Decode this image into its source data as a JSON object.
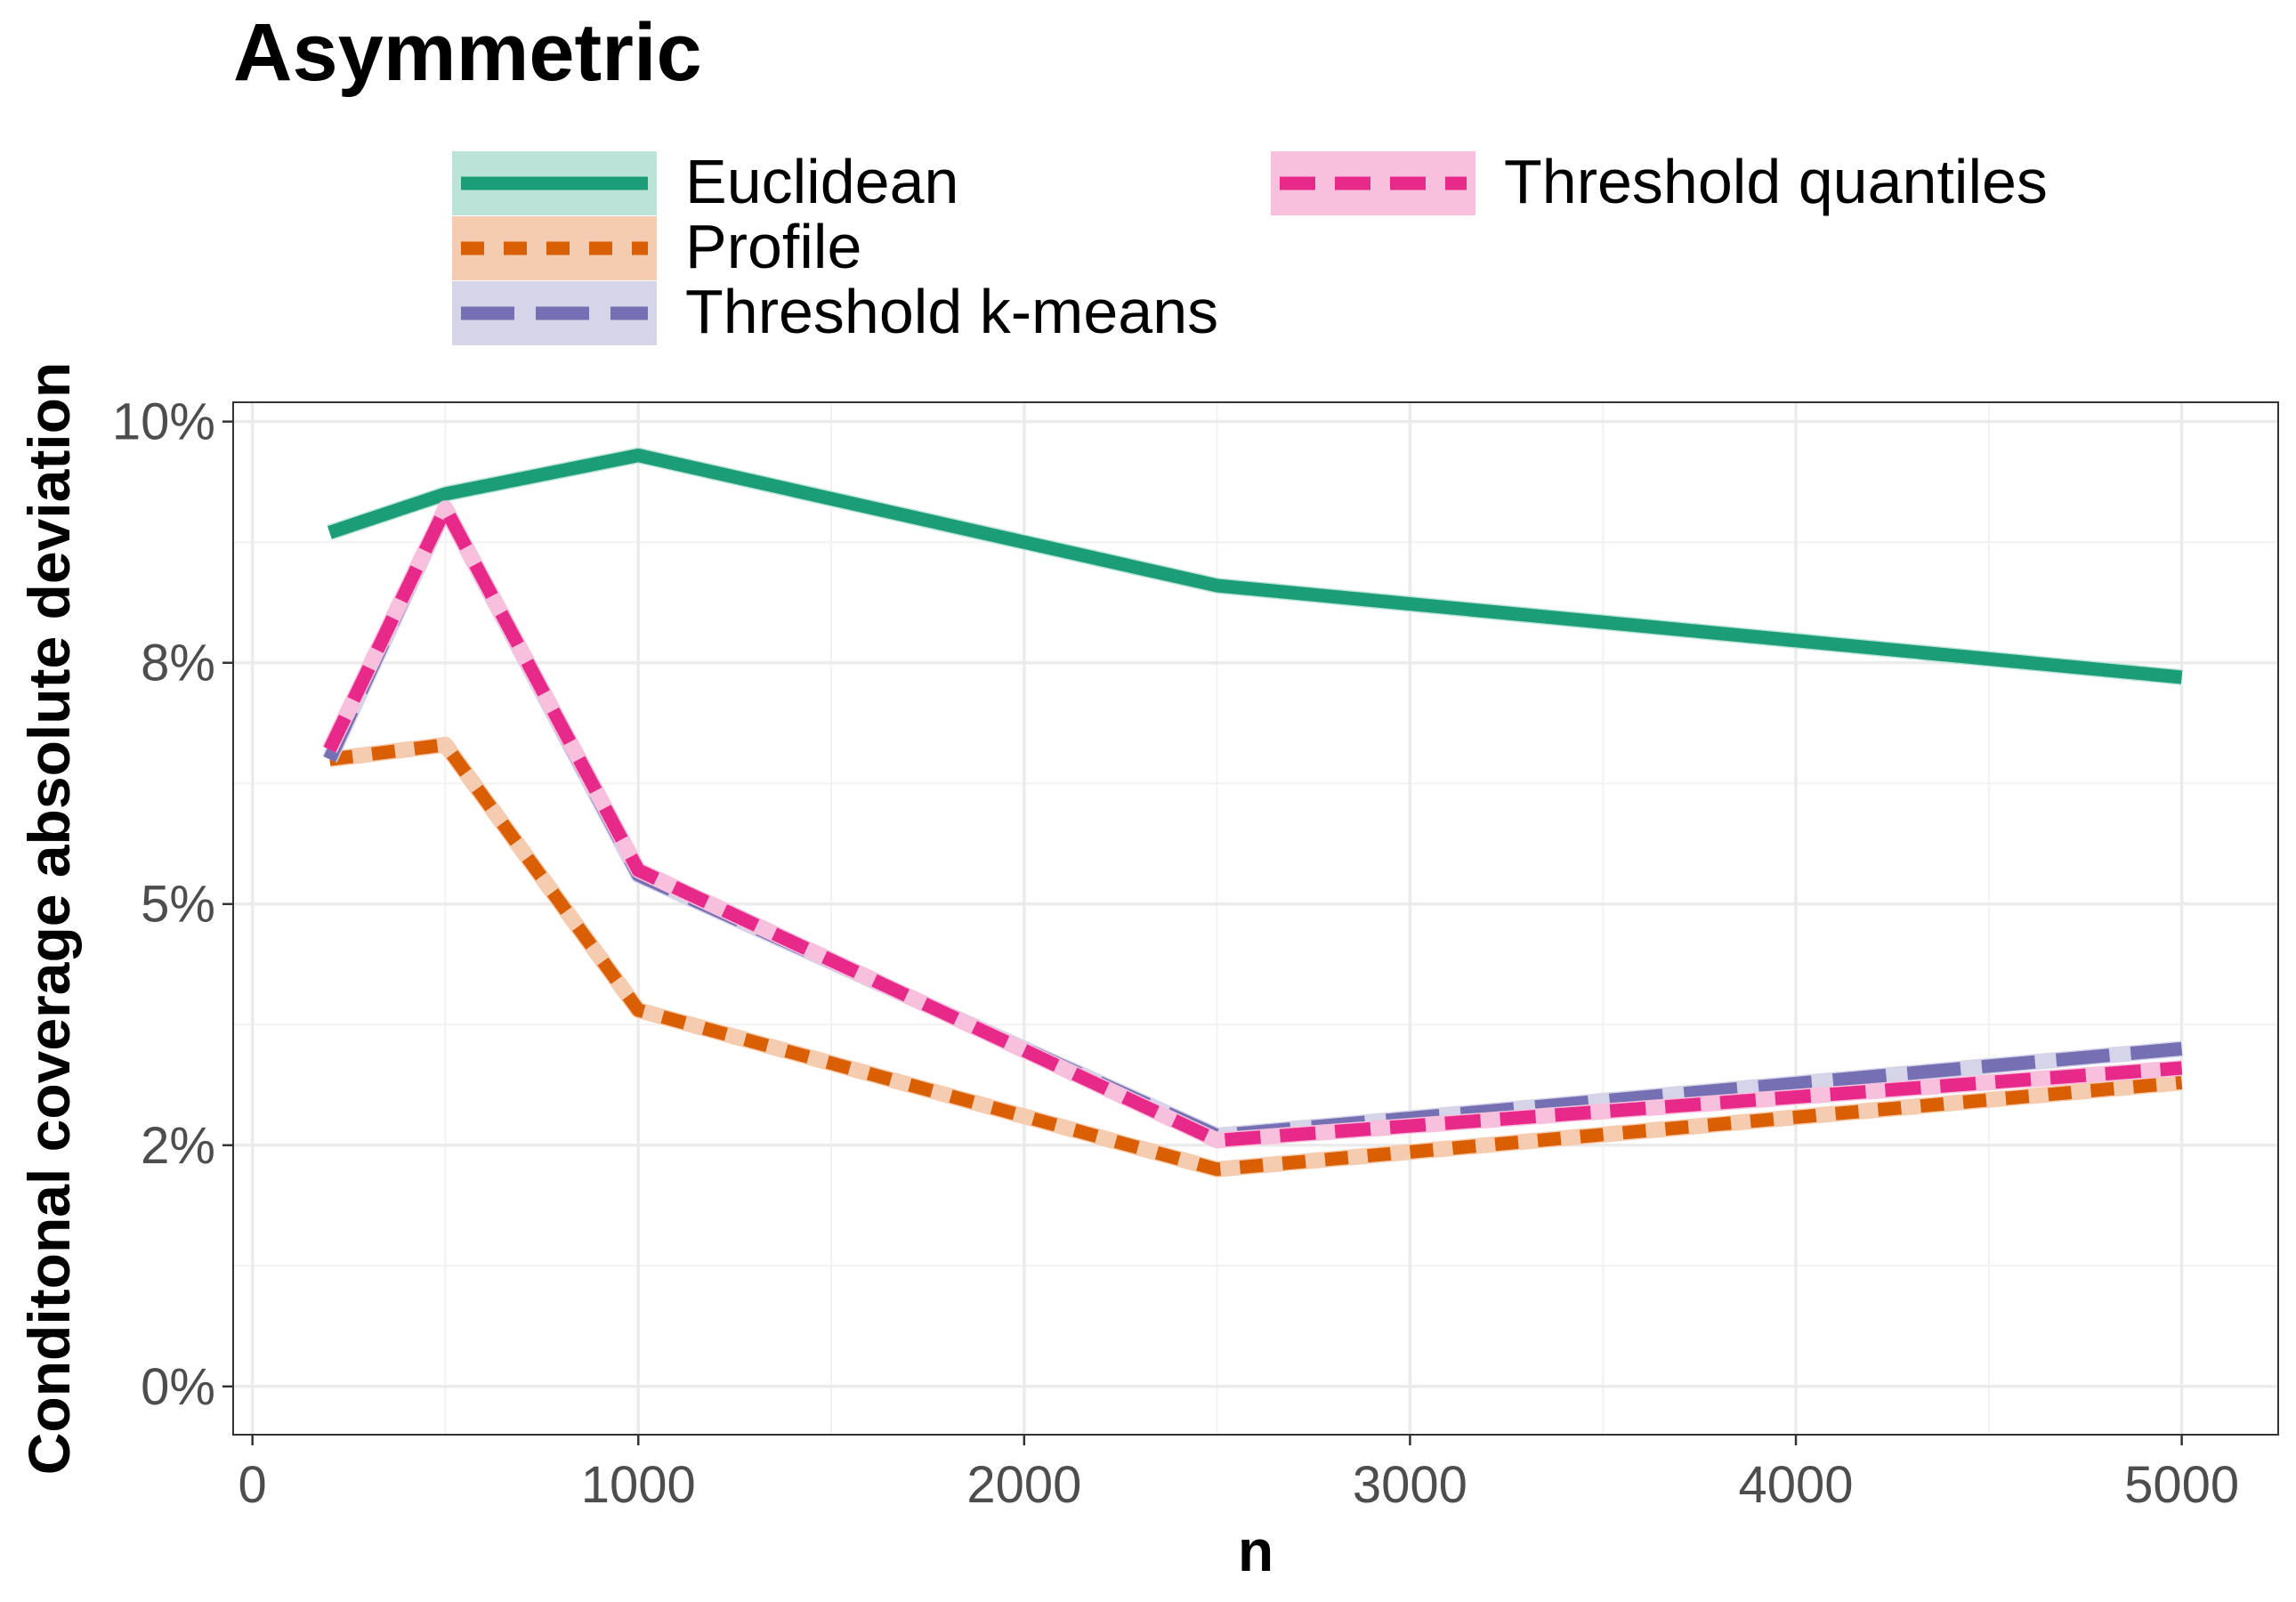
{
  "chart_data": {
    "type": "line",
    "title": "Asymmetric",
    "xlabel": "n",
    "ylabel": "Conditonal coverage absolute deviation",
    "x": [
      200,
      500,
      1000,
      2500,
      5000
    ],
    "xlim": [
      -50,
      5250
    ],
    "ylim": [
      -0.5,
      10.2
    ],
    "x_ticks": [
      0,
      1000,
      2000,
      3000,
      4000,
      5000
    ],
    "x_tick_labels": [
      "0",
      "1000",
      "2000",
      "3000",
      "4000",
      "5000"
    ],
    "y_ticks": [
      0,
      2.5,
      5,
      7.5,
      10
    ],
    "y_tick_labels": [
      "0%",
      "2%",
      "5%",
      "8%",
      "10%"
    ],
    "y_unit": "%",
    "legend_position": "top",
    "series": [
      {
        "name": "Euclidean",
        "values": [
          8.85,
          9.25,
          9.65,
          8.3,
          7.35
        ],
        "color": "#1b9e77",
        "fill": "#bce3d7",
        "dash": "solid"
      },
      {
        "name": "Profile",
        "values": [
          6.5,
          6.65,
          3.9,
          2.25,
          3.15
        ],
        "color": "#d95f02",
        "fill": "#f5ccb0",
        "dash": "short"
      },
      {
        "name": "Threshold k-means",
        "values": [
          6.5,
          9.1,
          5.3,
          2.6,
          3.5
        ],
        "color": "#7570b3",
        "fill": "#d6d4e8",
        "dash": "long"
      },
      {
        "name": "Threshold quantiles",
        "values": [
          6.6,
          9.1,
          5.35,
          2.55,
          3.3
        ],
        "color": "#e7298a",
        "fill": "#f8c0dc",
        "dash": "medium"
      }
    ]
  }
}
